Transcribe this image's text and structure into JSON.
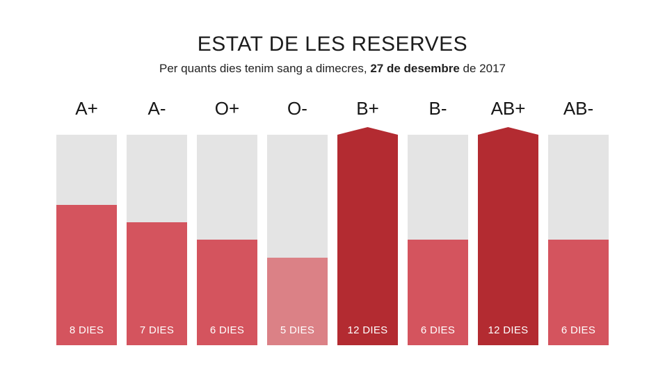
{
  "header": {
    "title": "ESTAT DE LES RESERVES",
    "subtitle_prefix": "Per quants dies tenim sang a dimecres, ",
    "subtitle_bold": "27 de desembre",
    "subtitle_suffix": " de 2017"
  },
  "colors": {
    "track": "#E4E4E4",
    "level_low": "#DB8186",
    "level_mid": "#D4545E",
    "level_full": "#B32B31",
    "days_text": "#FFFFFF"
  },
  "chart_data": {
    "type": "bar",
    "title": "ESTAT DE LES RESERVES",
    "subtitle": "Per quants dies tenim sang a dimecres, 27 de desembre de 2017",
    "categories": [
      "A+",
      "A-",
      "O+",
      "O-",
      "B+",
      "B-",
      "AB+",
      "AB-"
    ],
    "values": [
      8,
      7,
      6,
      5,
      12,
      6,
      12,
      6
    ],
    "value_labels": [
      "8 DIES",
      "7 DIES",
      "6 DIES",
      "5 DIES",
      "12 DIES",
      "6 DIES",
      "12 DIES",
      "6 DIES"
    ],
    "bar_colors": [
      "#D4545E",
      "#D4545E",
      "#D4545E",
      "#DB8186",
      "#B32B31",
      "#D4545E",
      "#B32B31",
      "#D4545E"
    ],
    "max_days": 12,
    "unit": "DIES",
    "ylim": [
      0,
      12
    ],
    "grid": false,
    "legend": false,
    "orientation": "vertical"
  }
}
